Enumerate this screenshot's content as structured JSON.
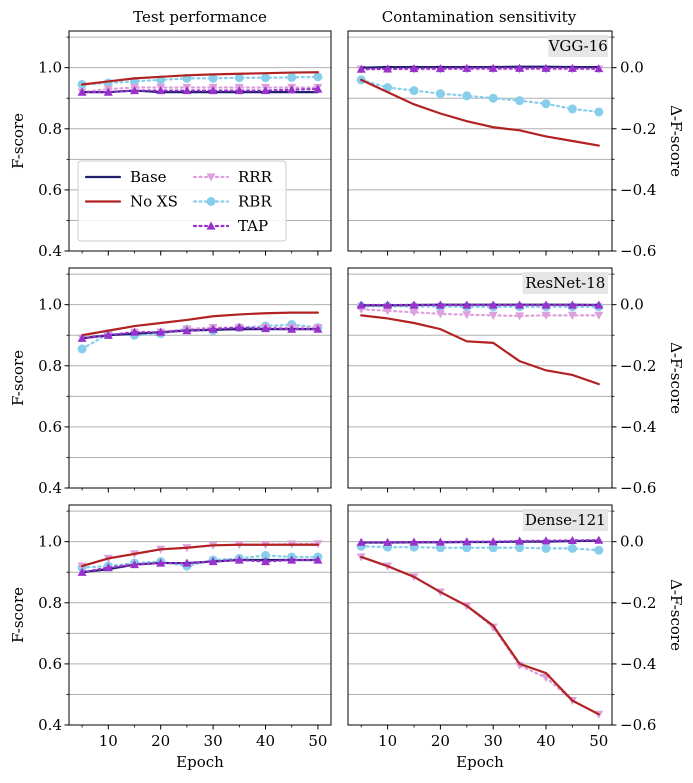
{
  "figure": {
    "col_titles": [
      "Test performance",
      "Contamination sensitivity"
    ],
    "models": [
      "VGG-16",
      "ResNet-18",
      "Dense-121"
    ],
    "xlabel": "Epoch",
    "ylabel_left": "F-score",
    "ylabel_right": "Δ-F-score",
    "legend": [
      "Base",
      "No XS",
      "RRR",
      "RBR",
      "TAP"
    ]
  },
  "series_styles": [
    {
      "name": "Base",
      "color": "#1f1f6e",
      "dash": "solid",
      "marker": "none"
    },
    {
      "name": "No XS",
      "color": "#b22222",
      "dash": "solid",
      "marker": "none"
    },
    {
      "name": "RRR",
      "color": "#dda0dd",
      "dash": "dotted",
      "marker": "triangle-down"
    },
    {
      "name": "RBR",
      "color": "#87ceeb",
      "dash": "dotted",
      "marker": "circle"
    },
    {
      "name": "TAP",
      "color": "#9932cc",
      "dash": "dotted",
      "marker": "triangle-up"
    }
  ],
  "chart_data": [
    {
      "type": "line",
      "model": "VGG-16",
      "panel": "Test performance",
      "x": [
        5,
        10,
        15,
        20,
        25,
        30,
        35,
        40,
        45,
        50
      ],
      "xticks": [
        10,
        20,
        30,
        40,
        50
      ],
      "ylim": [
        0.4,
        1.12
      ],
      "yticks": [
        0.4,
        0.6,
        0.8,
        1.0
      ],
      "grid": true,
      "legend_position": "center-left",
      "series": [
        {
          "name": "Base",
          "values": [
            0.92,
            0.92,
            0.925,
            0.92,
            0.92,
            0.92,
            0.92,
            0.92,
            0.92,
            0.92
          ]
        },
        {
          "name": "No XS",
          "values": [
            0.945,
            0.955,
            0.965,
            0.97,
            0.975,
            0.978,
            0.98,
            0.982,
            0.984,
            0.985
          ]
        },
        {
          "name": "RRR",
          "values": [
            0.92,
            0.93,
            0.935,
            0.935,
            0.935,
            0.935,
            0.935,
            0.935,
            0.935,
            0.935
          ]
        },
        {
          "name": "RBR",
          "values": [
            0.945,
            0.95,
            0.955,
            0.96,
            0.965,
            0.965,
            0.967,
            0.967,
            0.968,
            0.97
          ]
        },
        {
          "name": "TAP",
          "values": [
            0.92,
            0.92,
            0.925,
            0.925,
            0.925,
            0.925,
            0.925,
            0.925,
            0.928,
            0.93
          ]
        }
      ]
    },
    {
      "type": "line",
      "model": "VGG-16",
      "panel": "Contamination sensitivity",
      "x": [
        5,
        10,
        15,
        20,
        25,
        30,
        35,
        40,
        45,
        50
      ],
      "xticks": [
        10,
        20,
        30,
        40,
        50
      ],
      "ylim": [
        -0.6,
        0.12
      ],
      "yticks": [
        -0.6,
        -0.4,
        -0.2,
        0.0
      ],
      "grid": true,
      "series": [
        {
          "name": "Base",
          "values": [
            0.0,
            0.002,
            0.002,
            0.002,
            0.002,
            0.002,
            0.003,
            0.003,
            0.002,
            0.002
          ]
        },
        {
          "name": "No XS",
          "values": [
            -0.04,
            -0.08,
            -0.12,
            -0.15,
            -0.175,
            -0.195,
            -0.205,
            -0.225,
            -0.24,
            -0.255
          ]
        },
        {
          "name": "RRR",
          "values": [
            -0.005,
            -0.005,
            -0.005,
            -0.005,
            -0.005,
            -0.005,
            -0.005,
            -0.005,
            -0.005,
            -0.005
          ]
        },
        {
          "name": "RBR",
          "values": [
            -0.04,
            -0.065,
            -0.075,
            -0.085,
            -0.092,
            -0.1,
            -0.108,
            -0.118,
            -0.135,
            -0.145
          ]
        },
        {
          "name": "TAP",
          "values": [
            -0.005,
            -0.004,
            -0.003,
            -0.003,
            -0.002,
            -0.002,
            -0.002,
            -0.002,
            -0.002,
            -0.003
          ]
        }
      ]
    },
    {
      "type": "line",
      "model": "ResNet-18",
      "panel": "Test performance",
      "x": [
        5,
        10,
        15,
        20,
        25,
        30,
        35,
        40,
        45,
        50
      ],
      "xticks": [
        10,
        20,
        30,
        40,
        50
      ],
      "ylim": [
        0.4,
        1.12
      ],
      "yticks": [
        0.4,
        0.6,
        0.8,
        1.0
      ],
      "grid": true,
      "series": [
        {
          "name": "Base",
          "values": [
            0.89,
            0.9,
            0.905,
            0.91,
            0.915,
            0.918,
            0.92,
            0.92,
            0.92,
            0.92
          ]
        },
        {
          "name": "No XS",
          "values": [
            0.9,
            0.915,
            0.93,
            0.94,
            0.95,
            0.962,
            0.968,
            0.972,
            0.974,
            0.974
          ]
        },
        {
          "name": "RRR",
          "values": [
            0.89,
            0.9,
            0.91,
            0.91,
            0.92,
            0.925,
            0.925,
            0.925,
            0.925,
            0.925
          ]
        },
        {
          "name": "RBR",
          "values": [
            0.855,
            0.905,
            0.9,
            0.905,
            0.92,
            0.915,
            0.925,
            0.93,
            0.935,
            0.925
          ]
        },
        {
          "name": "TAP",
          "values": [
            0.89,
            0.9,
            0.91,
            0.91,
            0.915,
            0.92,
            0.925,
            0.922,
            0.92,
            0.92
          ]
        }
      ]
    },
    {
      "type": "line",
      "model": "ResNet-18",
      "panel": "Contamination sensitivity",
      "x": [
        5,
        10,
        15,
        20,
        25,
        30,
        35,
        40,
        45,
        50
      ],
      "xticks": [
        10,
        20,
        30,
        40,
        50
      ],
      "ylim": [
        -0.6,
        0.12
      ],
      "yticks": [
        -0.6,
        -0.4,
        -0.2,
        0.0
      ],
      "grid": true,
      "series": [
        {
          "name": "Base",
          "values": [
            -0.002,
            -0.002,
            -0.001,
            0.0,
            0.0,
            0.0,
            0.0,
            0.0,
            0.0,
            -0.001
          ]
        },
        {
          "name": "No XS",
          "values": [
            -0.035,
            -0.045,
            -0.06,
            -0.08,
            -0.12,
            -0.125,
            -0.185,
            -0.215,
            -0.23,
            -0.26
          ]
        },
        {
          "name": "RRR",
          "values": [
            -0.015,
            -0.02,
            -0.025,
            -0.03,
            -0.033,
            -0.035,
            -0.037,
            -0.035,
            -0.035,
            -0.035
          ]
        },
        {
          "name": "RBR",
          "values": [
            -0.005,
            -0.005,
            -0.006,
            -0.006,
            -0.007,
            -0.007,
            -0.007,
            -0.007,
            -0.007,
            -0.007
          ]
        },
        {
          "name": "TAP",
          "values": [
            -0.001,
            -0.001,
            -0.001,
            -0.001,
            -0.001,
            -0.001,
            -0.001,
            -0.001,
            -0.001,
            -0.001
          ]
        }
      ]
    },
    {
      "type": "line",
      "model": "Dense-121",
      "panel": "Test performance",
      "x": [
        5,
        10,
        15,
        20,
        25,
        30,
        35,
        40,
        45,
        50
      ],
      "xticks": [
        10,
        20,
        30,
        40,
        50
      ],
      "ylim": [
        0.4,
        1.12
      ],
      "yticks": [
        0.4,
        0.6,
        0.8,
        1.0
      ],
      "grid": true,
      "series": [
        {
          "name": "Base",
          "values": [
            0.9,
            0.91,
            0.925,
            0.93,
            0.93,
            0.935,
            0.94,
            0.94,
            0.94,
            0.94
          ]
        },
        {
          "name": "No XS",
          "values": [
            0.92,
            0.945,
            0.96,
            0.975,
            0.98,
            0.988,
            0.99,
            0.99,
            0.99,
            0.99
          ]
        },
        {
          "name": "RRR",
          "values": [
            0.92,
            0.945,
            0.96,
            0.975,
            0.98,
            0.988,
            0.99,
            0.99,
            0.992,
            0.993
          ]
        },
        {
          "name": "RBR",
          "values": [
            0.915,
            0.92,
            0.93,
            0.935,
            0.92,
            0.94,
            0.945,
            0.955,
            0.95,
            0.95
          ]
        },
        {
          "name": "TAP",
          "values": [
            0.9,
            0.915,
            0.925,
            0.93,
            0.93,
            0.935,
            0.94,
            0.935,
            0.94,
            0.94
          ]
        }
      ]
    },
    {
      "type": "line",
      "model": "Dense-121",
      "panel": "Contamination sensitivity",
      "x": [
        5,
        10,
        15,
        20,
        25,
        30,
        35,
        40,
        45,
        50
      ],
      "xticks": [
        10,
        20,
        30,
        40,
        50
      ],
      "ylim": [
        -0.6,
        0.12
      ],
      "yticks": [
        -0.6,
        -0.4,
        -0.2,
        0.0
      ],
      "grid": true,
      "series": [
        {
          "name": "Base",
          "values": [
            -0.003,
            -0.003,
            -0.002,
            -0.002,
            -0.001,
            -0.001,
            0.0,
            0.0,
            0.002,
            0.003
          ]
        },
        {
          "name": "No XS",
          "values": [
            -0.05,
            -0.08,
            -0.115,
            -0.165,
            -0.21,
            -0.275,
            -0.4,
            -0.43,
            -0.52,
            -0.565
          ]
        },
        {
          "name": "RRR",
          "values": [
            -0.05,
            -0.08,
            -0.115,
            -0.165,
            -0.21,
            -0.28,
            -0.405,
            -0.445,
            -0.52,
            -0.565
          ]
        },
        {
          "name": "RBR",
          "values": [
            -0.015,
            -0.018,
            -0.018,
            -0.02,
            -0.02,
            -0.02,
            -0.02,
            -0.022,
            -0.022,
            -0.028
          ]
        },
        {
          "name": "TAP",
          "values": [
            -0.002,
            -0.002,
            -0.001,
            -0.001,
            0.0,
            0.0,
            0.002,
            0.003,
            0.004,
            0.005
          ]
        }
      ]
    }
  ]
}
